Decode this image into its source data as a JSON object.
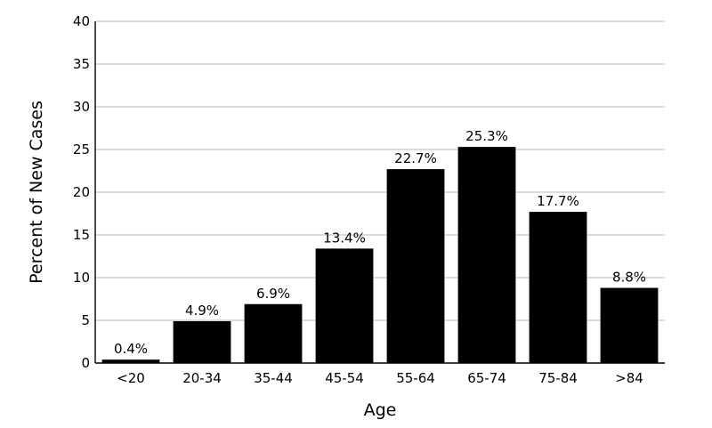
{
  "chart_data": {
    "type": "bar",
    "title": "",
    "xlabel": "Age",
    "ylabel": "Percent of New Cases",
    "categories": [
      "<20",
      "20-34",
      "35-44",
      "45-54",
      "55-64",
      "65-74",
      "75-84",
      ">84"
    ],
    "values": [
      0.4,
      4.9,
      6.9,
      13.4,
      22.7,
      25.3,
      17.7,
      8.8
    ],
    "value_labels": [
      "0.4%",
      "4.9%",
      "6.9%",
      "13.4%",
      "22.7%",
      "25.3%",
      "17.7%",
      "8.8%"
    ],
    "ylim": [
      0,
      40
    ],
    "yticks": [
      0,
      5,
      10,
      15,
      20,
      25,
      30,
      35,
      40
    ],
    "ytick_labels": [
      "0",
      "5",
      "10",
      "15",
      "20",
      "25",
      "30",
      "35",
      "40"
    ],
    "grid": "horizontal",
    "bar_color": "#000000",
    "grid_color": "#c8c8c8"
  }
}
